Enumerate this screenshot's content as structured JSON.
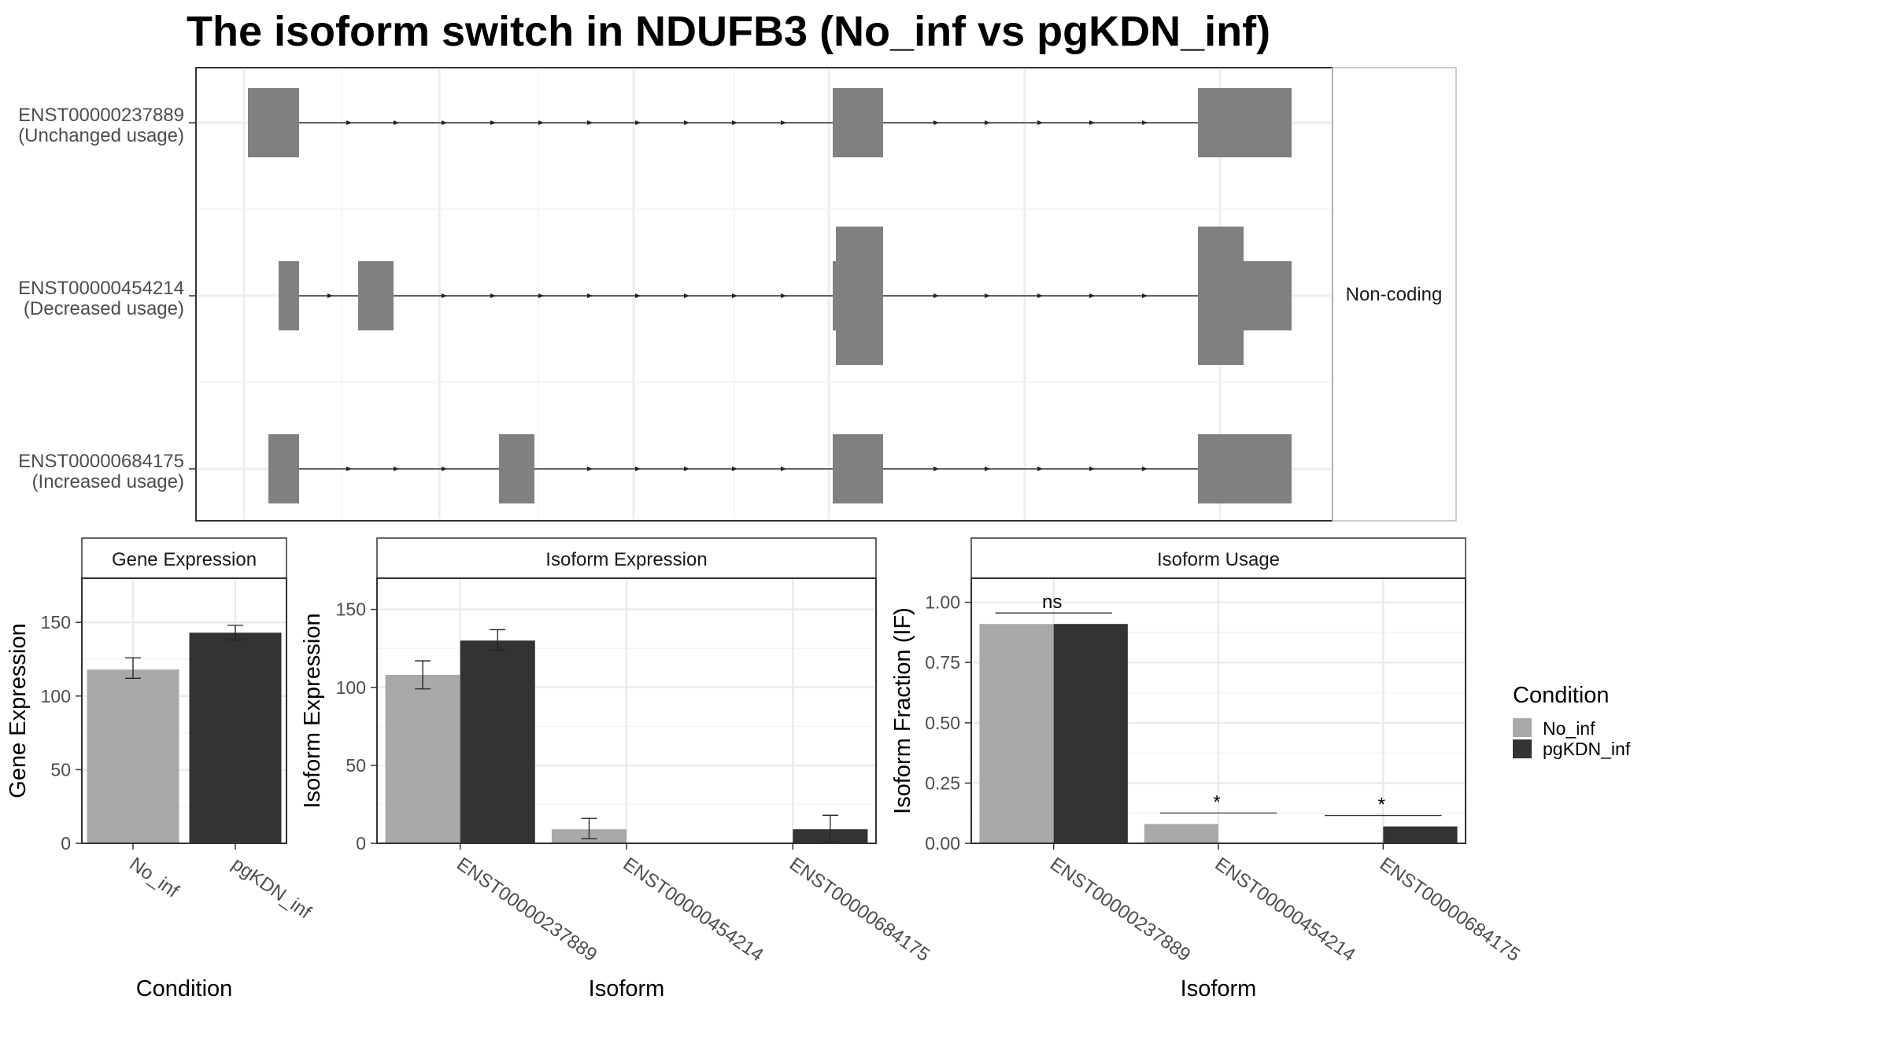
{
  "title": "The isoform switch in NDUFB3 (No_inf vs pgKDN_inf)",
  "structure_panel": {
    "strip_label": "Non-coding",
    "isoforms": [
      {
        "id": "ENST00000237889",
        "label": "(Unchanged usage)"
      },
      {
        "id": "ENST00000454214",
        "label": "(Decreased usage)"
      },
      {
        "id": "ENST00000684175",
        "label": "(Increased usage)"
      }
    ]
  },
  "legend": {
    "title": "Condition",
    "items": [
      {
        "name": "No_inf",
        "color": "#a9a9a9"
      },
      {
        "name": "pgKDN_inf",
        "color": "#333333"
      }
    ]
  },
  "chart_data": [
    {
      "type": "bar",
      "panel": "Gene Expression",
      "xlabel": "Condition",
      "ylabel": "Gene Expression",
      "ylim": [
        0,
        180
      ],
      "yticks": [
        0,
        50,
        100,
        150
      ],
      "categories": [
        "No_inf",
        "pgKDN_inf"
      ],
      "values": [
        118,
        143
      ],
      "error": [
        [
          112,
          126
        ],
        [
          138,
          148
        ]
      ]
    },
    {
      "type": "bar",
      "panel": "Isoform Expression",
      "xlabel": "Isoform",
      "ylabel": "Isoform Expression",
      "ylim": [
        0,
        170
      ],
      "yticks": [
        0,
        50,
        100,
        150
      ],
      "categories": [
        "ENST00000237889",
        "ENST00000454214",
        "ENST00000684175"
      ],
      "series": [
        {
          "name": "No_inf",
          "values": [
            108,
            9,
            0
          ],
          "error": [
            [
              99,
              117
            ],
            [
              3,
              16
            ],
            [
              0,
              0
            ]
          ]
        },
        {
          "name": "pgKDN_inf",
          "values": [
            130,
            0,
            9
          ],
          "error": [
            [
              124,
              137
            ],
            [
              0,
              0
            ],
            [
              1,
              18
            ]
          ]
        }
      ]
    },
    {
      "type": "bar",
      "panel": "Isoform Usage",
      "xlabel": "Isoform",
      "ylabel": "Isoform Fraction (IF)",
      "ylim": [
        0,
        1.1
      ],
      "yticks": [
        "0.00",
        "0.25",
        "0.50",
        "0.75",
        "1.00"
      ],
      "categories": [
        "ENST00000237889",
        "ENST00000454214",
        "ENST00000684175"
      ],
      "series": [
        {
          "name": "No_inf",
          "values": [
            0.91,
            0.08,
            0.0
          ]
        },
        {
          "name": "pgKDN_inf",
          "values": [
            0.91,
            0.0,
            0.07
          ]
        }
      ],
      "significance": [
        "ns",
        "*",
        "*"
      ]
    }
  ]
}
